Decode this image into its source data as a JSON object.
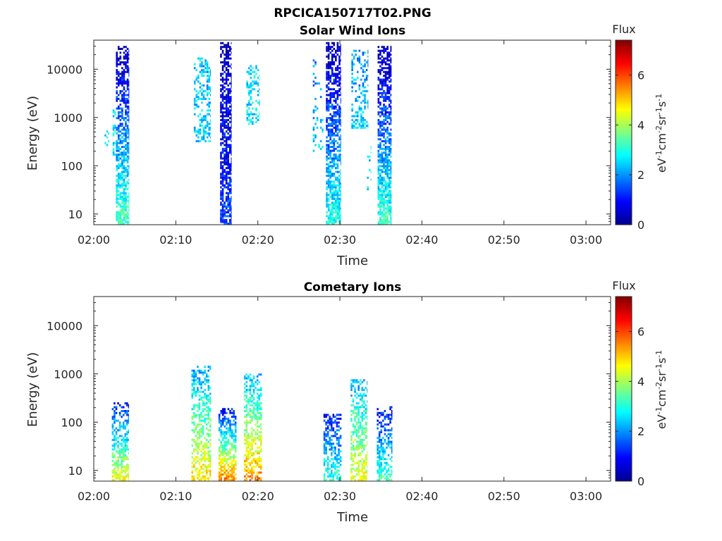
{
  "figure_title": "RPCICA150717T02.PNG",
  "chart_data": [
    {
      "type": "heatmap",
      "title": "Solar Wind Ions",
      "xlabel": "Time",
      "ylabel": "Energy (eV)",
      "x_tick_labels": [
        "02:00",
        "02:10",
        "02:20",
        "02:30",
        "02:40",
        "02:50",
        "03:00"
      ],
      "x_range_minutes": [
        0,
        63
      ],
      "y_scale": "log",
      "y_range_eV": [
        6,
        40000
      ],
      "y_tick_values": [
        10,
        100,
        1000,
        10000
      ],
      "y_tick_labels": [
        "10",
        "100",
        "1000",
        "10000"
      ],
      "colorbar": {
        "title": "Flux",
        "label": "eV-1cm-2sr-1s-1",
        "range": [
          0,
          7.4
        ],
        "tick_labels": [
          "0",
          "2",
          "4",
          "6"
        ]
      },
      "bursts": [
        {
          "start_min": 1.3,
          "end_min": 1.9,
          "emin_eV": 250,
          "emax_eV": 650,
          "flux_low": 2.6,
          "flux_high": 2.6,
          "density": 0.3
        },
        {
          "start_min": 2.3,
          "end_min": 2.7,
          "emin_eV": 150,
          "emax_eV": 1500,
          "flux_low": 2.6,
          "flux_high": 2.6,
          "density": 0.4
        },
        {
          "start_min": 2.7,
          "end_min": 4.3,
          "emin_eV": 6,
          "emax_eV": 30000,
          "flux_low": 3.4,
          "flux_high": 0.3,
          "density": 0.75
        },
        {
          "start_min": 12.2,
          "end_min": 14.2,
          "emin_eV": 300,
          "emax_eV": 18000,
          "flux_low": 2.5,
          "flux_high": 2.3,
          "density": 0.45
        },
        {
          "start_min": 15.4,
          "end_min": 16.8,
          "emin_eV": 6,
          "emax_eV": 38000,
          "flux_low": 1.4,
          "flux_high": 0.3,
          "density": 0.8
        },
        {
          "start_min": 18.6,
          "end_min": 20.2,
          "emin_eV": 700,
          "emax_eV": 12000,
          "flux_low": 2.6,
          "flux_high": 2.5,
          "density": 0.4
        },
        {
          "start_min": 26.7,
          "end_min": 28.0,
          "emin_eV": 200,
          "emax_eV": 20000,
          "flux_low": 2.4,
          "flux_high": 1.8,
          "density": 0.15
        },
        {
          "start_min": 28.3,
          "end_min": 30.1,
          "emin_eV": 6,
          "emax_eV": 35000,
          "flux_low": 3.0,
          "flux_high": 0.3,
          "density": 0.75
        },
        {
          "start_min": 31.4,
          "end_min": 33.4,
          "emin_eV": 600,
          "emax_eV": 25000,
          "flux_low": 2.4,
          "flux_high": 2.0,
          "density": 0.4
        },
        {
          "start_min": 33.3,
          "end_min": 33.8,
          "emin_eV": 30,
          "emax_eV": 300,
          "flux_low": 2.6,
          "flux_high": 2.6,
          "density": 0.2
        },
        {
          "start_min": 34.6,
          "end_min": 36.3,
          "emin_eV": 6,
          "emax_eV": 30000,
          "flux_low": 3.2,
          "flux_high": 0.3,
          "density": 0.75
        }
      ]
    },
    {
      "type": "heatmap",
      "title": "Cometary Ions",
      "xlabel": "Time",
      "ylabel": "Energy (eV)",
      "x_tick_labels": [
        "02:00",
        "02:10",
        "02:20",
        "02:30",
        "02:40",
        "02:50",
        "03:00"
      ],
      "x_range_minutes": [
        0,
        63
      ],
      "y_scale": "log",
      "y_range_eV": [
        6,
        40000
      ],
      "y_tick_values": [
        10,
        100,
        1000,
        10000
      ],
      "y_tick_labels": [
        "10",
        "100",
        "1000",
        "10000"
      ],
      "colorbar": {
        "title": "Flux",
        "label": "eV-1cm-2sr-1s-1",
        "range": [
          0,
          7.4
        ],
        "tick_labels": [
          "0",
          "2",
          "4",
          "6"
        ]
      },
      "bursts": [
        {
          "start_min": 2.2,
          "end_min": 4.3,
          "emin_eV": 6,
          "emax_eV": 250,
          "flux_low": 4.6,
          "flux_high": 1.0,
          "density": 0.6
        },
        {
          "start_min": 11.9,
          "end_min": 14.3,
          "emin_eV": 6,
          "emax_eV": 1500,
          "flux_low": 4.9,
          "flux_high": 2.0,
          "density": 0.55
        },
        {
          "start_min": 15.2,
          "end_min": 17.4,
          "emin_eV": 6,
          "emax_eV": 200,
          "flux_low": 5.7,
          "flux_high": 0.8,
          "density": 0.7
        },
        {
          "start_min": 18.3,
          "end_min": 20.5,
          "emin_eV": 6,
          "emax_eV": 1000,
          "flux_low": 5.5,
          "flux_high": 2.2,
          "density": 0.6
        },
        {
          "start_min": 28.0,
          "end_min": 30.2,
          "emin_eV": 6,
          "emax_eV": 150,
          "flux_low": 3.2,
          "flux_high": 1.0,
          "density": 0.65
        },
        {
          "start_min": 31.3,
          "end_min": 33.3,
          "emin_eV": 6,
          "emax_eV": 800,
          "flux_low": 4.6,
          "flux_high": 2.2,
          "density": 0.55
        },
        {
          "start_min": 34.5,
          "end_min": 36.4,
          "emin_eV": 6,
          "emax_eV": 220,
          "flux_low": 3.4,
          "flux_high": 0.8,
          "density": 0.6
        }
      ]
    }
  ]
}
